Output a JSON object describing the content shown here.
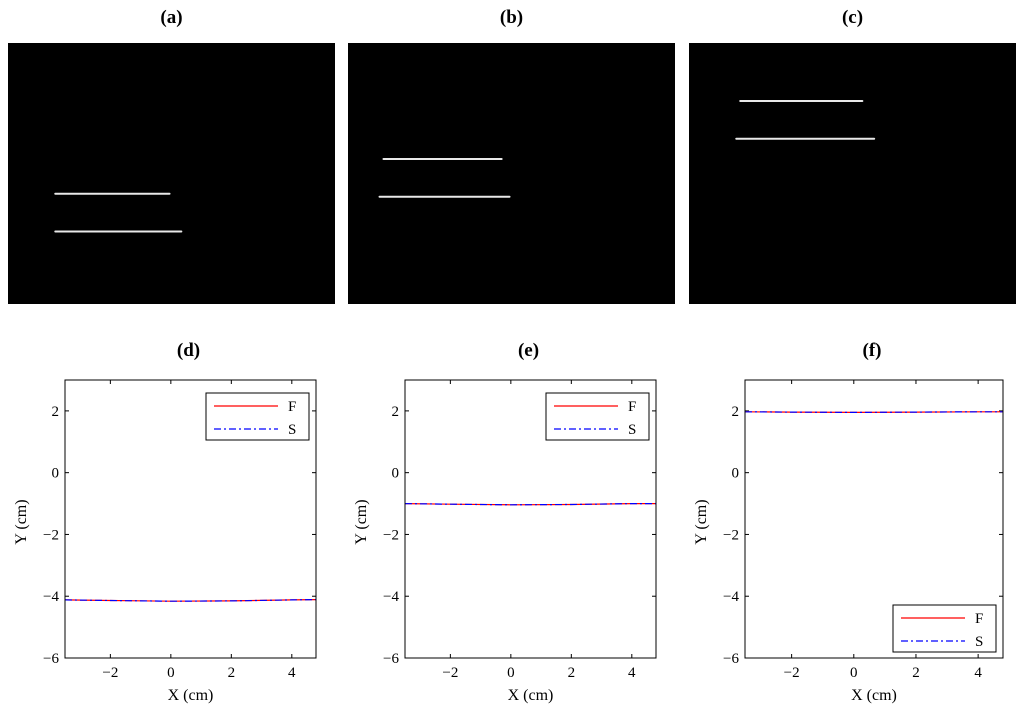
{
  "colors": {
    "F": "#ff0000",
    "S": "#0000ff",
    "streak": "#e8e8e8",
    "image_bg": "#000000"
  },
  "images": [
    {
      "label": "(a)",
      "streaks": [
        {
          "x": [
            -2.3,
            0.6
          ],
          "y": -2.2
        },
        {
          "x": [
            -2.3,
            0.9
          ],
          "y": -3.5
        }
      ]
    },
    {
      "label": "(b)",
      "streaks": [
        {
          "x": [
            -2.6,
            0.4
          ],
          "y": -1.0
        },
        {
          "x": [
            -2.7,
            0.6
          ],
          "y": -2.3
        }
      ]
    },
    {
      "label": "(c)",
      "streaks": [
        {
          "x": [
            -2.2,
            0.9
          ],
          "y": 1.0
        },
        {
          "x": [
            -2.3,
            1.2
          ],
          "y": -0.3
        }
      ]
    }
  ],
  "chart_data": [
    {
      "panel": "(d)",
      "type": "line",
      "xlabel": "X (cm)",
      "ylabel": "Y (cm)",
      "xlim": [
        -3.5,
        4.8
      ],
      "ylim": [
        -6,
        3
      ],
      "xticks": [
        -2,
        0,
        2,
        4
      ],
      "yticks": [
        -6,
        -4,
        -2,
        0,
        2
      ],
      "legend_position": "top-right",
      "series": [
        {
          "name": "F",
          "style": "solid",
          "x": [
            -3.5,
            -2,
            0,
            2,
            4,
            4.8
          ],
          "y": [
            -4.12,
            -4.14,
            -4.16,
            -4.15,
            -4.12,
            -4.11
          ]
        },
        {
          "name": "S",
          "style": "dashdot",
          "x": [
            -3.5,
            -2,
            0,
            2,
            4,
            4.8
          ],
          "y": [
            -4.12,
            -4.14,
            -4.16,
            -4.15,
            -4.12,
            -4.11
          ]
        }
      ]
    },
    {
      "panel": "(e)",
      "type": "line",
      "xlabel": "X (cm)",
      "ylabel": "Y (cm)",
      "xlim": [
        -3.5,
        4.8
      ],
      "ylim": [
        -6,
        3
      ],
      "xticks": [
        -2,
        0,
        2,
        4
      ],
      "yticks": [
        -6,
        -4,
        -2,
        0,
        2
      ],
      "legend_position": "top-right",
      "series": [
        {
          "name": "F",
          "style": "solid",
          "x": [
            -3.5,
            -2,
            0,
            2,
            4,
            4.8
          ],
          "y": [
            -1.0,
            -1.02,
            -1.04,
            -1.03,
            -1.0,
            -1.0
          ]
        },
        {
          "name": "S",
          "style": "dashdot",
          "x": [
            -3.5,
            -2,
            0,
            2,
            4,
            4.8
          ],
          "y": [
            -1.0,
            -1.02,
            -1.04,
            -1.03,
            -1.0,
            -1.0
          ]
        }
      ]
    },
    {
      "panel": "(f)",
      "type": "line",
      "xlabel": "X (cm)",
      "ylabel": "Y (cm)",
      "xlim": [
        -3.5,
        4.8
      ],
      "ylim": [
        -6,
        3
      ],
      "xticks": [
        -2,
        0,
        2,
        4
      ],
      "yticks": [
        -6,
        -4,
        -2,
        0,
        2
      ],
      "legend_position": "bottom-right",
      "series": [
        {
          "name": "F",
          "style": "solid",
          "x": [
            -3.5,
            -2,
            0,
            2,
            4,
            4.8
          ],
          "y": [
            1.97,
            1.96,
            1.95,
            1.96,
            1.97,
            1.97
          ]
        },
        {
          "name": "S",
          "style": "dashdot",
          "x": [
            -3.5,
            -2,
            0,
            2,
            4,
            4.8
          ],
          "y": [
            1.97,
            1.96,
            1.95,
            1.96,
            1.97,
            1.97
          ]
        }
      ]
    }
  ]
}
